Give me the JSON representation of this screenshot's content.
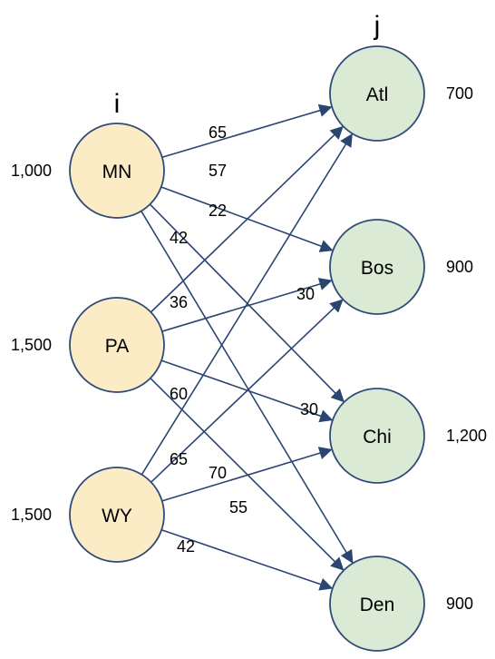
{
  "headers": {
    "sources": "i",
    "destinations": "j"
  },
  "colors": {
    "source_fill": "#fcecc5",
    "destination_fill": "#dbead5",
    "node_stroke": "#2f4b7a",
    "edge": "#2a4670"
  },
  "sources": [
    {
      "label": "MN",
      "supply": "1,000"
    },
    {
      "label": "PA",
      "supply": "1,500"
    },
    {
      "label": "WY",
      "supply": "1,500"
    }
  ],
  "destinations": [
    {
      "label": "Atl",
      "demand": "700"
    },
    {
      "label": "Bos",
      "demand": "900"
    },
    {
      "label": "Chi",
      "demand": "1,200"
    },
    {
      "label": "Den",
      "demand": "900"
    }
  ],
  "edges": [
    {
      "from": "MN",
      "to": "Atl",
      "cost": "65"
    },
    {
      "from": "MN",
      "to": "Bos",
      "cost": "57"
    },
    {
      "from": "MN",
      "to": "Chi",
      "cost": "22"
    },
    {
      "from": "MN",
      "to": "Den",
      "cost": "42"
    },
    {
      "from": "PA",
      "to": "Atl",
      "cost": "36"
    },
    {
      "from": "PA",
      "to": "Bos",
      "cost": "30"
    },
    {
      "from": "PA",
      "to": "Chi",
      "cost": "30"
    },
    {
      "from": "PA",
      "to": "Den",
      "cost": "60"
    },
    {
      "from": "WY",
      "to": "Atl",
      "cost": "65"
    },
    {
      "from": "WY",
      "to": "Bos",
      "cost": "70"
    },
    {
      "from": "WY",
      "to": "Chi",
      "cost": "55"
    },
    {
      "from": "WY",
      "to": "Den",
      "cost": "42"
    }
  ]
}
